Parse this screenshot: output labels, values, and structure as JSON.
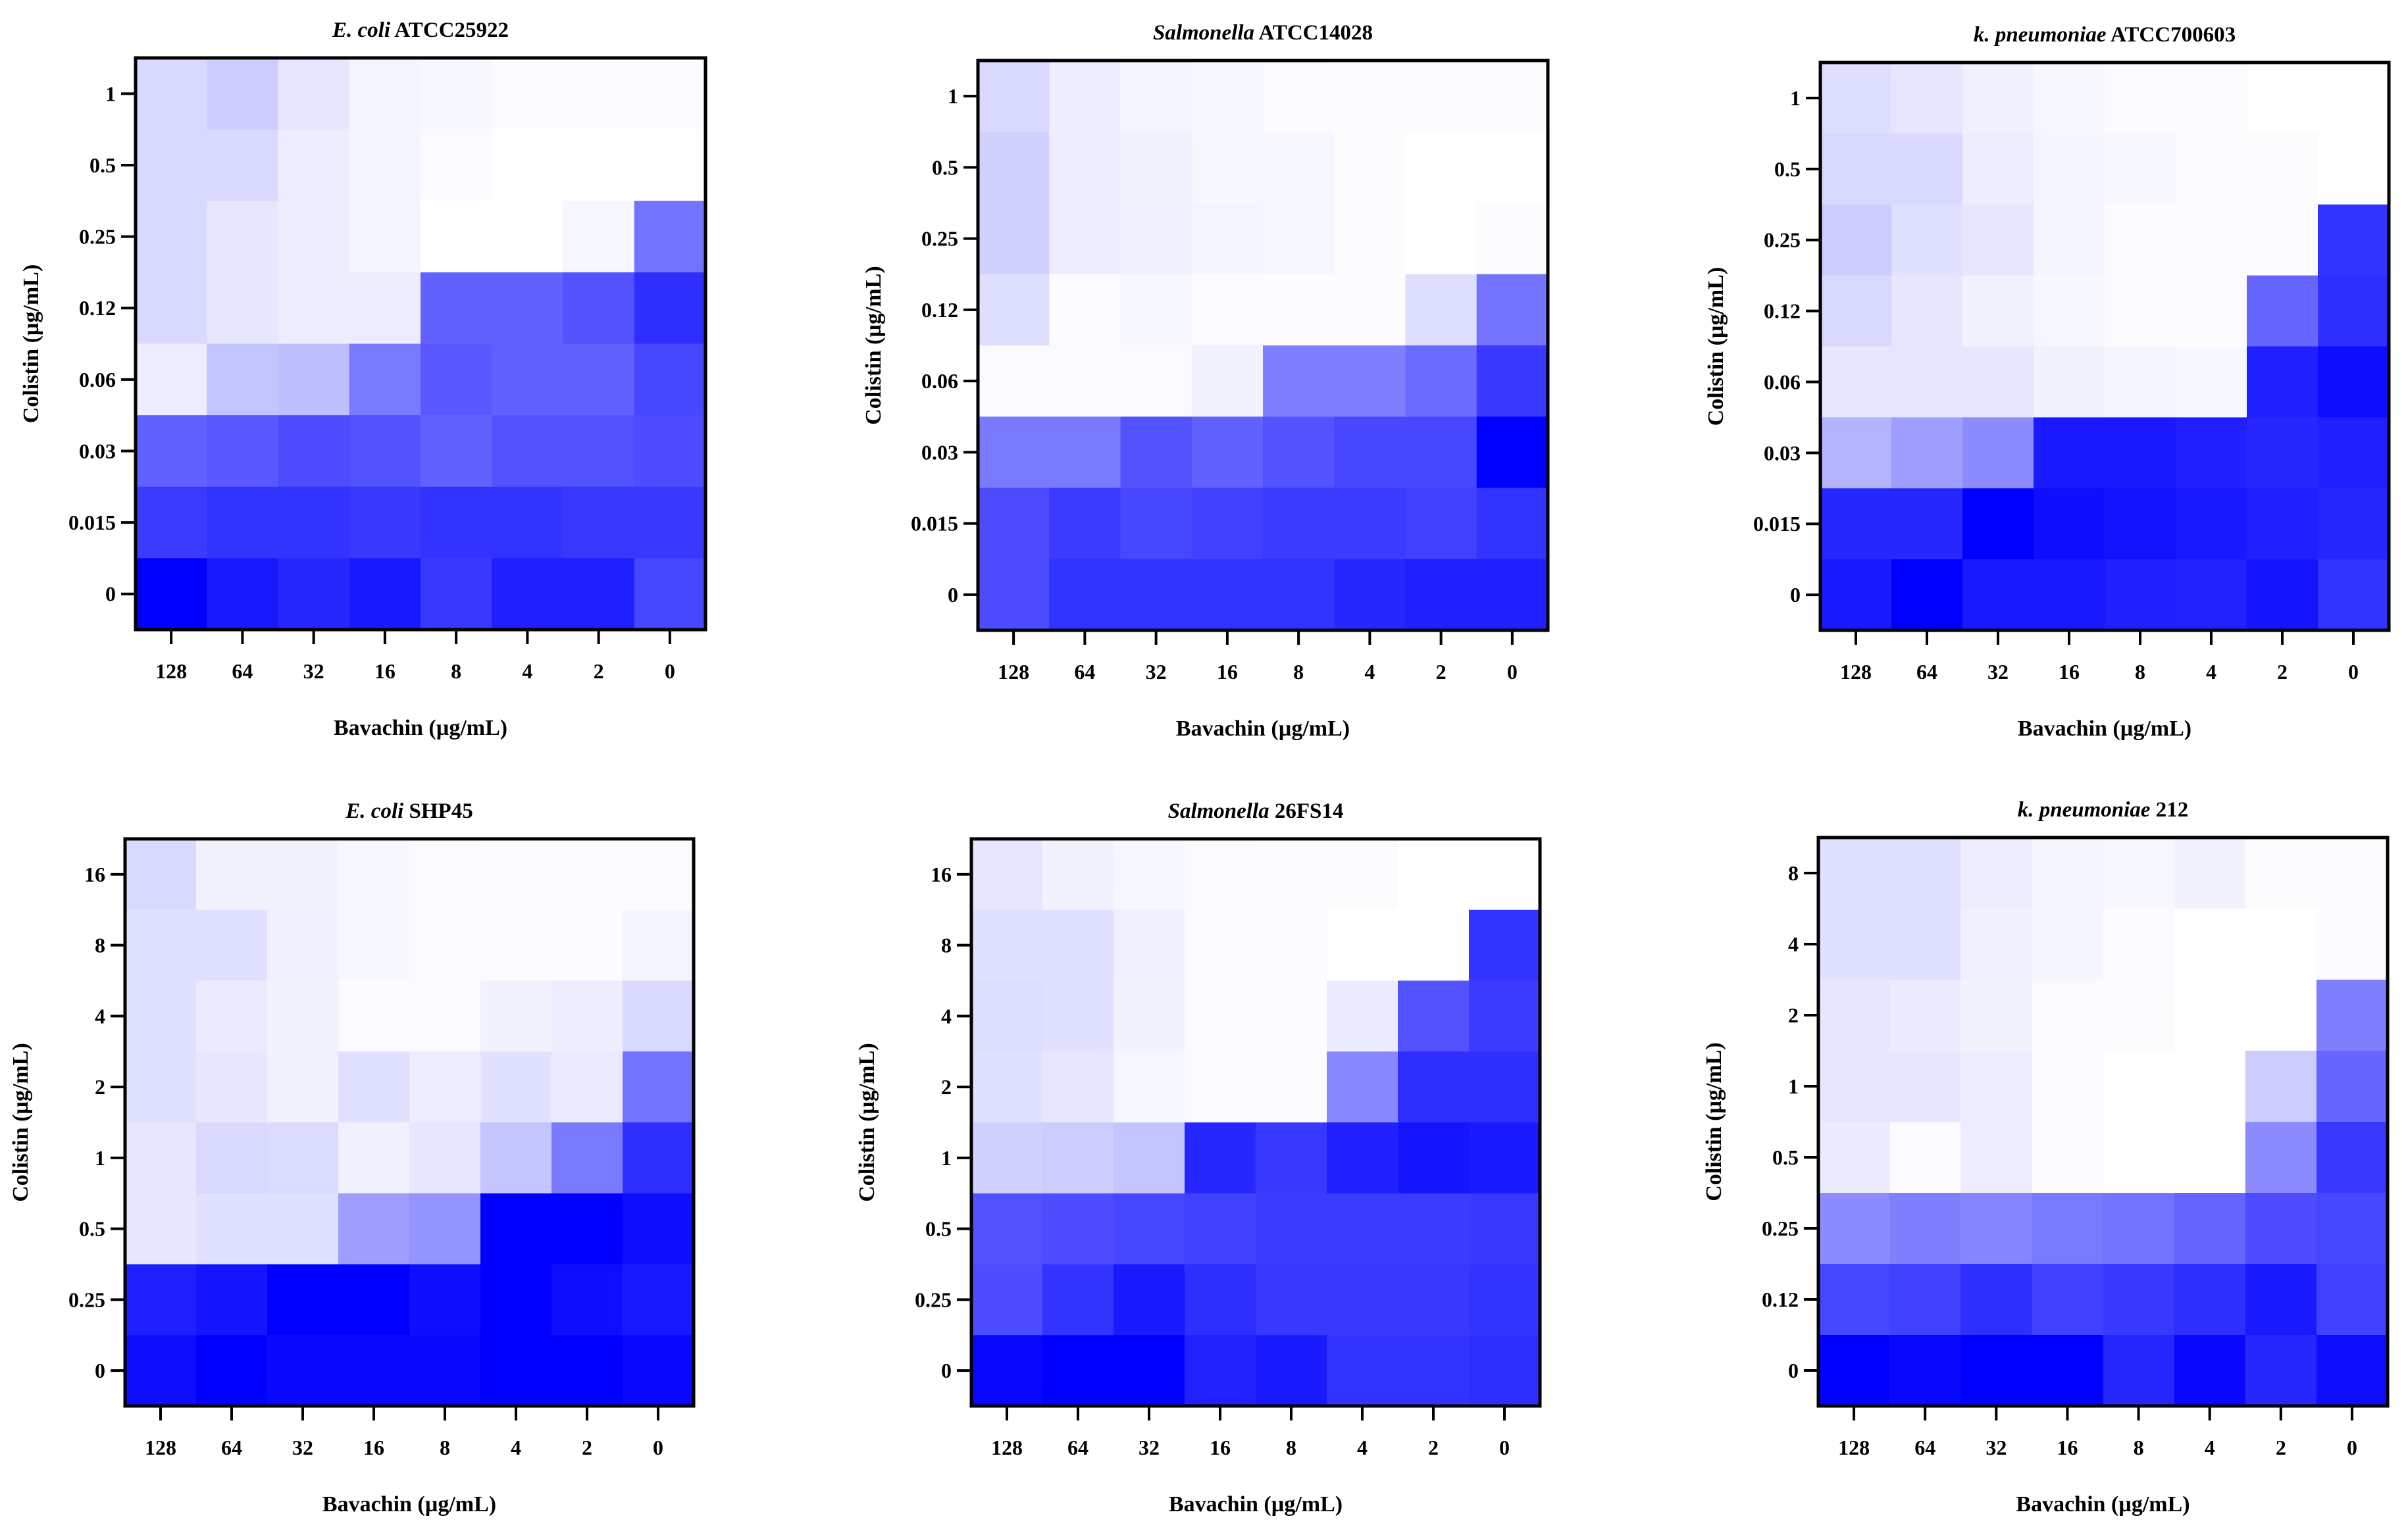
{
  "chart_data": [
    {
      "type": "heatmap",
      "title_italic": "E. coli",
      "title_rest": " ATCC25922",
      "xlabel": "Bavachin (µg/mL)",
      "ylabel": "Colistin (µg/mL)",
      "x_categories": [
        "128",
        "64",
        "32",
        "16",
        "8",
        "4",
        "2",
        "0"
      ],
      "y_categories": [
        "1",
        "0.5",
        "0.25",
        "0.12",
        "0.06",
        "0.03",
        "0.015",
        "0"
      ],
      "value_range": [
        0,
        1
      ],
      "values": [
        [
          0.15,
          0.2,
          0.1,
          0.04,
          0.03,
          0.01,
          0.01,
          0.01
        ],
        [
          0.15,
          0.15,
          0.07,
          0.04,
          0.02,
          0.0,
          0.0,
          0.0
        ],
        [
          0.15,
          0.1,
          0.07,
          0.04,
          0.0,
          0.0,
          0.03,
          0.55
        ],
        [
          0.15,
          0.1,
          0.07,
          0.07,
          0.62,
          0.62,
          0.68,
          0.82
        ],
        [
          0.07,
          0.23,
          0.25,
          0.52,
          0.65,
          0.62,
          0.62,
          0.72
        ],
        [
          0.62,
          0.65,
          0.7,
          0.68,
          0.62,
          0.68,
          0.68,
          0.7
        ],
        [
          0.77,
          0.8,
          0.8,
          0.78,
          0.8,
          0.8,
          0.78,
          0.78
        ],
        [
          1.0,
          0.9,
          0.85,
          0.9,
          0.78,
          0.88,
          0.88,
          0.72
        ]
      ]
    },
    {
      "type": "heatmap",
      "title_italic": "Salmonella",
      "title_rest": " ATCC14028",
      "xlabel": "Bavachin (µg/mL)",
      "ylabel": "Colistin (µg/mL)",
      "x_categories": [
        "128",
        "64",
        "32",
        "16",
        "8",
        "4",
        "2",
        "0"
      ],
      "y_categories": [
        "1",
        "0.5",
        "0.25",
        "0.12",
        "0.06",
        "0.03",
        "0.015",
        "0"
      ],
      "value_range": [
        0,
        1
      ],
      "values": [
        [
          0.15,
          0.07,
          0.04,
          0.03,
          0.02,
          0.01,
          0.01,
          0.01
        ],
        [
          0.18,
          0.07,
          0.05,
          0.03,
          0.03,
          0.01,
          0.0,
          0.0
        ],
        [
          0.18,
          0.07,
          0.06,
          0.04,
          0.03,
          0.01,
          0.0,
          0.01
        ],
        [
          0.13,
          0.02,
          0.03,
          0.02,
          0.01,
          0.01,
          0.13,
          0.55
        ],
        [
          0.02,
          0.02,
          0.02,
          0.05,
          0.5,
          0.5,
          0.58,
          0.78
        ],
        [
          0.52,
          0.52,
          0.68,
          0.62,
          0.68,
          0.72,
          0.72,
          1.0
        ],
        [
          0.7,
          0.77,
          0.72,
          0.75,
          0.77,
          0.77,
          0.75,
          0.8
        ],
        [
          0.7,
          0.8,
          0.8,
          0.8,
          0.8,
          0.85,
          0.88,
          0.88
        ]
      ]
    },
    {
      "type": "heatmap",
      "title_italic": "k. pneumoniae",
      "title_rest": " ATCC700603",
      "xlabel": "Bavachin (µg/mL)",
      "ylabel": "Colistin (µg/mL)",
      "x_categories": [
        "128",
        "64",
        "32",
        "16",
        "8",
        "4",
        "2",
        "0"
      ],
      "y_categories": [
        "1",
        "0.5",
        "0.25",
        "0.12",
        "0.06",
        "0.03",
        "0.015",
        "0"
      ],
      "value_range": [
        0,
        1
      ],
      "values": [
        [
          0.13,
          0.1,
          0.06,
          0.03,
          0.02,
          0.01,
          0.0,
          0.0
        ],
        [
          0.15,
          0.15,
          0.07,
          0.04,
          0.03,
          0.01,
          0.01,
          0.0
        ],
        [
          0.2,
          0.12,
          0.1,
          0.04,
          0.02,
          0.01,
          0.01,
          0.8
        ],
        [
          0.15,
          0.1,
          0.05,
          0.03,
          0.02,
          0.01,
          0.6,
          0.82
        ],
        [
          0.1,
          0.1,
          0.1,
          0.05,
          0.04,
          0.03,
          0.88,
          0.95
        ],
        [
          0.3,
          0.38,
          0.45,
          0.9,
          0.9,
          0.88,
          0.85,
          0.88
        ],
        [
          0.85,
          0.85,
          1.0,
          0.95,
          0.93,
          0.9,
          0.88,
          0.85
        ],
        [
          0.9,
          1.0,
          0.9,
          0.9,
          0.88,
          0.87,
          0.92,
          0.8
        ]
      ]
    },
    {
      "type": "heatmap",
      "title_italic": "E. coli",
      "title_rest": " SHP45",
      "xlabel": "Bavachin (µg/mL)",
      "ylabel": "Colistin (µg/mL)",
      "x_categories": [
        "128",
        "64",
        "32",
        "16",
        "8",
        "4",
        "2",
        "0"
      ],
      "y_categories": [
        "16",
        "8",
        "4",
        "2",
        "1",
        "0.5",
        "0.25",
        "0"
      ],
      "value_range": [
        0,
        1
      ],
      "values": [
        [
          0.15,
          0.05,
          0.05,
          0.03,
          0.02,
          0.01,
          0.01,
          0.01
        ],
        [
          0.12,
          0.12,
          0.06,
          0.03,
          0.02,
          0.01,
          0.01,
          0.04
        ],
        [
          0.12,
          0.08,
          0.05,
          0.02,
          0.02,
          0.05,
          0.07,
          0.15
        ],
        [
          0.12,
          0.1,
          0.05,
          0.12,
          0.07,
          0.12,
          0.08,
          0.55
        ],
        [
          0.1,
          0.15,
          0.14,
          0.06,
          0.1,
          0.23,
          0.52,
          0.82
        ],
        [
          0.1,
          0.12,
          0.12,
          0.38,
          0.42,
          1.0,
          1.0,
          0.95
        ],
        [
          0.88,
          0.92,
          1.0,
          1.0,
          0.95,
          1.0,
          0.95,
          0.9
        ],
        [
          0.95,
          1.0,
          0.97,
          0.97,
          0.97,
          1.0,
          1.0,
          0.97
        ]
      ]
    },
    {
      "type": "heatmap",
      "title_italic": "Salmonella",
      "title_rest": " 26FS14",
      "xlabel": "Bavachin (µg/mL)",
      "ylabel": "Colistin (µg/mL)",
      "x_categories": [
        "128",
        "64",
        "32",
        "16",
        "8",
        "4",
        "2",
        "0"
      ],
      "y_categories": [
        "16",
        "8",
        "4",
        "2",
        "1",
        "0.5",
        "0.25",
        "0"
      ],
      "value_range": [
        0,
        1
      ],
      "values": [
        [
          0.1,
          0.05,
          0.03,
          0.02,
          0.01,
          0.01,
          0.0,
          0.0
        ],
        [
          0.12,
          0.12,
          0.06,
          0.02,
          0.01,
          0.0,
          0.0,
          0.8
        ],
        [
          0.13,
          0.12,
          0.05,
          0.02,
          0.01,
          0.08,
          0.68,
          0.77
        ],
        [
          0.12,
          0.1,
          0.03,
          0.02,
          0.01,
          0.47,
          0.82,
          0.82
        ],
        [
          0.18,
          0.2,
          0.23,
          0.85,
          0.78,
          0.88,
          0.92,
          0.9
        ],
        [
          0.68,
          0.7,
          0.72,
          0.75,
          0.77,
          0.77,
          0.77,
          0.78
        ],
        [
          0.7,
          0.8,
          0.9,
          0.82,
          0.78,
          0.78,
          0.78,
          0.8
        ],
        [
          0.97,
          1.0,
          1.0,
          0.87,
          0.9,
          0.8,
          0.8,
          0.82
        ]
      ]
    },
    {
      "type": "heatmap",
      "title_italic": "k. pneumoniae",
      "title_rest": " 212",
      "xlabel": "Bavachin (µg/mL)",
      "ylabel": "Colistin (µg/mL)",
      "x_categories": [
        "128",
        "64",
        "32",
        "16",
        "8",
        "4",
        "2",
        "0"
      ],
      "y_categories": [
        "8",
        "4",
        "2",
        "1",
        "0.5",
        "0.25",
        "0.12",
        "0"
      ],
      "value_range": [
        0,
        1
      ],
      "values": [
        [
          0.12,
          0.12,
          0.07,
          0.04,
          0.03,
          0.05,
          0.01,
          0.01
        ],
        [
          0.12,
          0.12,
          0.06,
          0.04,
          0.02,
          0.0,
          0.0,
          0.01
        ],
        [
          0.1,
          0.08,
          0.05,
          0.02,
          0.01,
          0.0,
          0.0,
          0.5
        ],
        [
          0.1,
          0.1,
          0.07,
          0.02,
          0.0,
          0.0,
          0.2,
          0.6
        ],
        [
          0.08,
          0.02,
          0.07,
          0.02,
          0.0,
          0.0,
          0.45,
          0.78
        ],
        [
          0.45,
          0.5,
          0.48,
          0.52,
          0.55,
          0.6,
          0.7,
          0.72
        ],
        [
          0.72,
          0.75,
          0.82,
          0.75,
          0.78,
          0.82,
          0.9,
          0.75
        ],
        [
          1.0,
          0.97,
          1.0,
          1.0,
          0.85,
          0.97,
          0.85,
          0.95
        ]
      ]
    }
  ]
}
